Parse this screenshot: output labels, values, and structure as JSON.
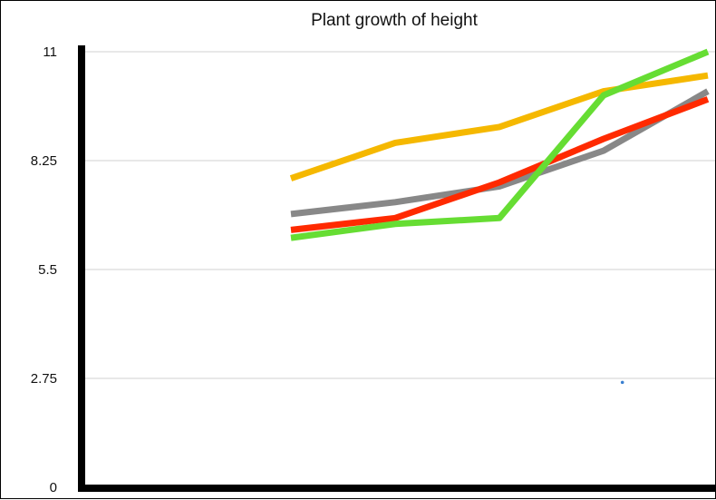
{
  "chart_data": {
    "type": "line",
    "title": "Plant growth of height",
    "xlabel": "",
    "ylabel": "",
    "ylim": [
      0,
      11
    ],
    "yticks": [
      0,
      2.75,
      5.5,
      8.25,
      11
    ],
    "ytick_labels": [
      "0",
      "2.75",
      "5.5",
      "8.25",
      "11"
    ],
    "x": [
      1,
      2,
      3,
      4,
      5,
      6,
      7
    ],
    "grid": true,
    "legend": "none",
    "series": [
      {
        "color": "#f5b800",
        "values": [
          null,
          null,
          7.8,
          8.7,
          9.1,
          10.0,
          10.4
        ]
      },
      {
        "color": "#888888",
        "values": [
          null,
          null,
          6.9,
          7.2,
          7.6,
          8.5,
          10.0
        ]
      },
      {
        "color": "#ff2a00",
        "values": [
          null,
          null,
          6.5,
          6.8,
          7.7,
          8.8,
          9.8
        ]
      },
      {
        "color": "#66dd33",
        "values": [
          null,
          null,
          6.3,
          6.65,
          6.8,
          9.9,
          11.0
        ]
      }
    ],
    "annotation_point": {
      "x": 6.18,
      "y": 2.65,
      "color": "#3a7fd0"
    }
  }
}
